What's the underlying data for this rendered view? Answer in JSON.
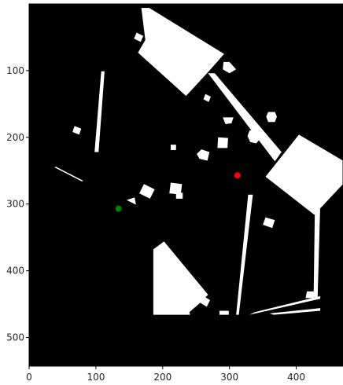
{
  "chart_data": {
    "type": "scatter",
    "title": "",
    "xlabel": "",
    "ylabel": "",
    "background_color": "#000000",
    "obstacle_color": "#ffffff",
    "xlim": [
      0,
      470
    ],
    "ylim": [
      543,
      0
    ],
    "x_ticks": [
      0,
      100,
      200,
      300,
      400
    ],
    "y_ticks": [
      100,
      200,
      300,
      400,
      500
    ],
    "x_tick_labels": [
      "0",
      "100",
      "200",
      "300",
      "400"
    ],
    "y_tick_labels": [
      "100",
      "200",
      "300",
      "400",
      "500"
    ],
    "grid": false,
    "legend": "none",
    "series": [
      {
        "color": "#008000",
        "points": [
          {
            "x": 134,
            "y": 307
          }
        ]
      },
      {
        "color": "#ff0000",
        "points": [
          {
            "x": 312,
            "y": 257
          }
        ]
      }
    ],
    "obstacles": [
      [
        [
          168,
          6
        ],
        [
          180,
          6
        ],
        [
          292,
          75
        ],
        [
          270,
          100
        ],
        [
          235,
          138
        ],
        [
          163,
          73
        ],
        [
          174,
          54
        ]
      ],
      [
        [
          268,
          104
        ],
        [
          278,
          104
        ],
        [
          378,
          222
        ],
        [
          368,
          236
        ]
      ],
      [
        [
          404,
          196
        ],
        [
          470,
          235
        ],
        [
          470,
          270
        ],
        [
          427,
          316
        ],
        [
          354,
          259
        ]
      ],
      [
        [
          186,
          368
        ],
        [
          202,
          356
        ],
        [
          268,
          436
        ],
        [
          254,
          450
        ],
        [
          240,
          462
        ],
        [
          241,
          466
        ],
        [
          186,
          466
        ]
      ],
      [
        [
          328,
          286
        ],
        [
          335,
          286
        ],
        [
          314,
          466
        ],
        [
          310,
          466
        ]
      ],
      [
        [
          428,
          298
        ],
        [
          436,
          298
        ],
        [
          432,
          440
        ],
        [
          426,
          440
        ]
      ],
      [
        [
          108,
          101
        ],
        [
          113,
          101
        ],
        [
          104,
          222
        ],
        [
          98,
          222
        ]
      ],
      [
        [
          338,
          462
        ],
        [
          436,
          438
        ],
        [
          436,
          442
        ],
        [
          330,
          466
        ]
      ],
      [
        [
          360,
          464
        ],
        [
          436,
          456
        ],
        [
          436,
          460
        ],
        [
          366,
          466
        ]
      ],
      [
        [
          161,
          43
        ],
        [
          171,
          48
        ],
        [
          167,
          57
        ],
        [
          157,
          52
        ]
      ],
      [
        [
          291,
          87
        ],
        [
          300,
          87
        ],
        [
          310,
          98
        ],
        [
          300,
          104
        ],
        [
          290,
          98
        ]
      ],
      [
        [
          264,
          135
        ],
        [
          272,
          139
        ],
        [
          269,
          147
        ],
        [
          261,
          143
        ]
      ],
      [
        [
          290,
          170
        ],
        [
          306,
          170
        ],
        [
          303,
          179
        ],
        [
          294,
          180
        ]
      ],
      [
        [
          358,
          162
        ],
        [
          368,
          162
        ],
        [
          371,
          169
        ],
        [
          368,
          177
        ],
        [
          358,
          177
        ],
        [
          355,
          169
        ]
      ],
      [
        [
          68,
          183
        ],
        [
          78,
          187
        ],
        [
          75,
          196
        ],
        [
          65,
          192
        ]
      ],
      [
        [
          283,
          200
        ],
        [
          298,
          201
        ],
        [
          297,
          216
        ],
        [
          282,
          216
        ]
      ],
      [
        [
          330,
          190
        ],
        [
          344,
          186
        ],
        [
          348,
          200
        ],
        [
          340,
          209
        ],
        [
          331,
          207
        ],
        [
          327,
          198
        ]
      ],
      [
        [
          212,
          211
        ],
        [
          220,
          211
        ],
        [
          220,
          219
        ],
        [
          212,
          219
        ]
      ],
      [
        [
          258,
          218
        ],
        [
          270,
          222
        ],
        [
          267,
          235
        ],
        [
          255,
          232
        ],
        [
          251,
          225
        ]
      ],
      [
        [
          212,
          268
        ],
        [
          229,
          270
        ],
        [
          227,
          286
        ],
        [
          210,
          284
        ]
      ],
      [
        [
          172,
          270
        ],
        [
          188,
          278
        ],
        [
          181,
          292
        ],
        [
          165,
          284
        ]
      ],
      [
        [
          220,
          283
        ],
        [
          230,
          283
        ],
        [
          230,
          292
        ],
        [
          220,
          292
        ]
      ],
      [
        [
          146,
          294
        ],
        [
          158,
          290
        ],
        [
          160,
          301
        ]
      ],
      [
        [
          354,
          320
        ],
        [
          368,
          324
        ],
        [
          364,
          336
        ],
        [
          350,
          331
        ]
      ],
      [
        [
          258,
          436
        ],
        [
          271,
          444
        ],
        [
          266,
          454
        ],
        [
          253,
          446
        ]
      ],
      [
        [
          416,
          431
        ],
        [
          428,
          431
        ],
        [
          426,
          441
        ],
        [
          414,
          441
        ]
      ],
      [
        [
          285,
          460
        ],
        [
          299,
          460
        ],
        [
          299,
          466
        ],
        [
          285,
          466
        ]
      ],
      [
        [
          38,
          245
        ],
        [
          40,
          244
        ],
        [
          81,
          265
        ],
        [
          79,
          266
        ]
      ]
    ]
  }
}
